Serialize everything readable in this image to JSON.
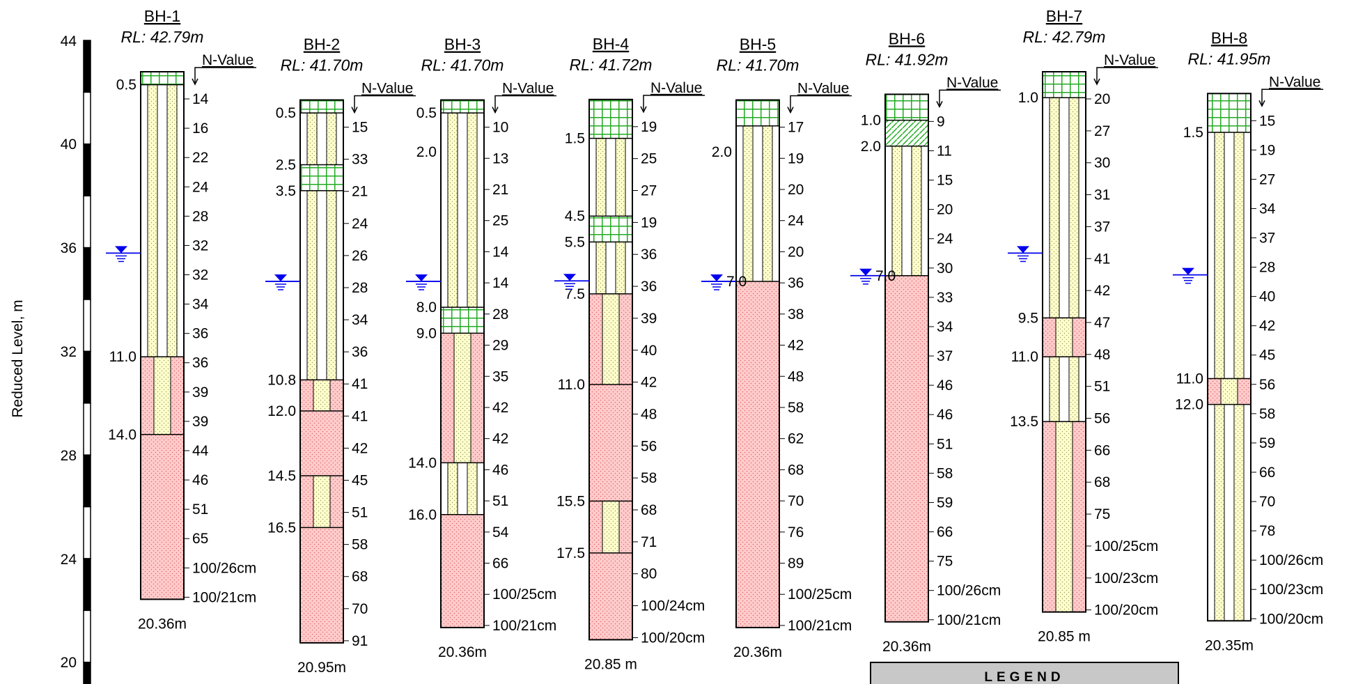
{
  "axis": {
    "label": "Reduced Level, m",
    "ticks": [
      "44",
      "40",
      "36",
      "32",
      "28",
      "24",
      "20"
    ]
  },
  "colors": {
    "fill": "#ffcccc",
    "sand": "#ffffcc",
    "topsoil": "#22aa22",
    "water": "#0000ee",
    "legend_bg": "#c8c8c8"
  },
  "boreholes": [
    {
      "id": "BH-1",
      "rl_label": "RL: 42.79m",
      "rl": 42.79,
      "nvalue_label": "N-Value",
      "total_depth_label": "20.36m",
      "total_depth": 20.36,
      "water_depth": 7.0,
      "layers": [
        {
          "type": "topsoil",
          "top": 0,
          "bottom": 0.5
        },
        {
          "type": "sand",
          "top": 0.5,
          "bottom": 11.0
        },
        {
          "type": "sandfill",
          "top": 11.0,
          "bottom": 14.0
        },
        {
          "type": "fill",
          "top": 14.0,
          "bottom": 20.36
        }
      ],
      "depth_labels": [
        {
          "depth": 0.5,
          "text": "0.5"
        },
        {
          "depth": 11.0,
          "text": "11.0"
        },
        {
          "depth": 14.0,
          "text": "14.0"
        }
      ],
      "n_values": [
        "14",
        "16",
        "22",
        "24",
        "28",
        "32",
        "32",
        "34",
        "36",
        "36",
        "39",
        "39",
        "44",
        "46",
        "51",
        "65",
        "100/26cm",
        "100/21cm"
      ]
    },
    {
      "id": "BH-2",
      "rl_label": "RL: 41.70m",
      "rl": 41.7,
      "nvalue_label": "N-Value",
      "total_depth_label": "20.95m",
      "total_depth": 20.95,
      "water_depth": 7.0,
      "layers": [
        {
          "type": "topsoil",
          "top": 0,
          "bottom": 0.5
        },
        {
          "type": "sand",
          "top": 0.5,
          "bottom": 2.5
        },
        {
          "type": "topsoil",
          "top": 2.5,
          "bottom": 3.5
        },
        {
          "type": "sand",
          "top": 3.5,
          "bottom": 10.8
        },
        {
          "type": "sandfill",
          "top": 10.8,
          "bottom": 12.0
        },
        {
          "type": "fill",
          "top": 12.0,
          "bottom": 14.5
        },
        {
          "type": "sandfill",
          "top": 14.5,
          "bottom": 16.5
        },
        {
          "type": "fill",
          "top": 16.5,
          "bottom": 20.95
        }
      ],
      "depth_labels": [
        {
          "depth": 0.5,
          "text": "0.5"
        },
        {
          "depth": 2.5,
          "text": "2.5"
        },
        {
          "depth": 3.5,
          "text": "3.5"
        },
        {
          "depth": 10.8,
          "text": "10.8"
        },
        {
          "depth": 12.0,
          "text": "12.0"
        },
        {
          "depth": 14.5,
          "text": "14.5"
        },
        {
          "depth": 16.5,
          "text": "16.5"
        }
      ],
      "n_values": [
        "15",
        "33",
        "21",
        "24",
        "26",
        "28",
        "34",
        "36",
        "41",
        "41",
        "42",
        "45",
        "51",
        "58",
        "68",
        "70",
        "91"
      ]
    },
    {
      "id": "BH-3",
      "rl_label": "RL: 41.70m",
      "rl": 41.7,
      "nvalue_label": "N-Value",
      "total_depth_label": "20.36m",
      "total_depth": 20.36,
      "water_depth": 7.0,
      "layers": [
        {
          "type": "topsoil",
          "top": 0,
          "bottom": 0.5
        },
        {
          "type": "sand",
          "top": 0.5,
          "bottom": 8.0
        },
        {
          "type": "topsoil",
          "top": 8.0,
          "bottom": 9.0
        },
        {
          "type": "sandfill",
          "top": 9.0,
          "bottom": 14.0
        },
        {
          "type": "sand",
          "top": 14.0,
          "bottom": 16.0
        },
        {
          "type": "fill",
          "top": 16.0,
          "bottom": 20.36
        }
      ],
      "depth_labels": [
        {
          "depth": 0.5,
          "text": "0.5"
        },
        {
          "depth": 2.0,
          "text": "2.0"
        },
        {
          "depth": 8.0,
          "text": "8.0"
        },
        {
          "depth": 9.0,
          "text": "9.0"
        },
        {
          "depth": 14.0,
          "text": "14.0"
        },
        {
          "depth": 16.0,
          "text": "16.0"
        }
      ],
      "n_values": [
        "10",
        "13",
        "21",
        "25",
        "14",
        "14",
        "28",
        "29",
        "35",
        "42",
        "42",
        "46",
        "51",
        "54",
        "66",
        "100/25cm",
        "100/21cm"
      ]
    },
    {
      "id": "BH-4",
      "rl_label": "RL: 41.72m",
      "rl": 41.72,
      "nvalue_label": "N-Value",
      "total_depth_label": "20.85 m",
      "total_depth": 20.85,
      "water_depth": 7.0,
      "layers": [
        {
          "type": "topsoil",
          "top": 0,
          "bottom": 1.5
        },
        {
          "type": "sand",
          "top": 1.5,
          "bottom": 4.5
        },
        {
          "type": "topsoil",
          "top": 4.5,
          "bottom": 5.5
        },
        {
          "type": "sand",
          "top": 5.5,
          "bottom": 7.5
        },
        {
          "type": "sandfill",
          "top": 7.5,
          "bottom": 11.0
        },
        {
          "type": "fill",
          "top": 11.0,
          "bottom": 15.5
        },
        {
          "type": "sandfill",
          "top": 15.5,
          "bottom": 17.5
        },
        {
          "type": "fill",
          "top": 17.5,
          "bottom": 20.85
        }
      ],
      "depth_labels": [
        {
          "depth": 1.5,
          "text": "1.5"
        },
        {
          "depth": 4.5,
          "text": "4.5"
        },
        {
          "depth": 5.5,
          "text": "5.5"
        },
        {
          "depth": 7.5,
          "text": "7.5"
        },
        {
          "depth": 11.0,
          "text": "11.0"
        },
        {
          "depth": 15.5,
          "text": "15.5"
        },
        {
          "depth": 17.5,
          "text": "17.5"
        }
      ],
      "n_values": [
        "19",
        "25",
        "27",
        "19",
        "36",
        "36",
        "39",
        "40",
        "42",
        "48",
        "56",
        "58",
        "68",
        "71",
        "80",
        "100/24cm",
        "100/20cm"
      ]
    },
    {
      "id": "BH-5",
      "rl_label": "RL: 41.70m",
      "rl": 41.7,
      "nvalue_label": "N-Value",
      "total_depth_label": "20.36m",
      "total_depth": 20.36,
      "water_depth": 7.0,
      "water_label": "7.0",
      "layers": [
        {
          "type": "topsoil",
          "top": 0,
          "bottom": 1.0
        },
        {
          "type": "sand",
          "top": 1.0,
          "bottom": 7.0
        },
        {
          "type": "fill",
          "top": 7.0,
          "bottom": 20.36
        }
      ],
      "depth_labels": [
        {
          "depth": 2.0,
          "text": "2.0"
        }
      ],
      "n_values": [
        "17",
        "19",
        "20",
        "24",
        "20",
        "36",
        "38",
        "42",
        "48",
        "58",
        "62",
        "68",
        "70",
        "76",
        "89",
        "100/25cm",
        "100/21cm"
      ]
    },
    {
      "id": "BH-6",
      "rl_label": "RL: 41.92m",
      "rl": 41.92,
      "nvalue_label": "N-Value",
      "total_depth_label": "20.36m",
      "total_depth": 20.36,
      "water_depth": 7.0,
      "water_label": "7.0",
      "layers": [
        {
          "type": "topsoil",
          "top": 0,
          "bottom": 1.0
        },
        {
          "type": "hatch",
          "top": 1.0,
          "bottom": 2.0
        },
        {
          "type": "sand",
          "top": 2.0,
          "bottom": 7.0
        },
        {
          "type": "fill",
          "top": 7.0,
          "bottom": 20.36
        }
      ],
      "depth_labels": [
        {
          "depth": 1.0,
          "text": "1.0"
        },
        {
          "depth": 2.0,
          "text": "2.0"
        }
      ],
      "n_values": [
        "9",
        "11",
        "15",
        "20",
        "24",
        "30",
        "33",
        "34",
        "37",
        "46",
        "46",
        "51",
        "58",
        "59",
        "66",
        "75",
        "100/26cm",
        "100/21cm"
      ]
    },
    {
      "id": "BH-7",
      "rl_label": "RL: 42.79m",
      "rl": 42.79,
      "nvalue_label": "N-Value",
      "total_depth_label": "20.85 m",
      "total_depth": 20.85,
      "water_depth": 7.0,
      "layers": [
        {
          "type": "topsoil",
          "top": 0,
          "bottom": 1.0
        },
        {
          "type": "sand",
          "top": 1.0,
          "bottom": 9.5
        },
        {
          "type": "sandfill",
          "top": 9.5,
          "bottom": 11.0
        },
        {
          "type": "sand",
          "top": 11.0,
          "bottom": 13.5
        },
        {
          "type": "sandfill",
          "top": 13.5,
          "bottom": 20.85
        }
      ],
      "depth_labels": [
        {
          "depth": 1.0,
          "text": "1.0"
        },
        {
          "depth": 9.5,
          "text": "9.5"
        },
        {
          "depth": 11.0,
          "text": "11.0"
        },
        {
          "depth": 13.5,
          "text": "13.5"
        }
      ],
      "n_values": [
        "20",
        "27",
        "30",
        "31",
        "37",
        "41",
        "42",
        "47",
        "48",
        "51",
        "56",
        "66",
        "68",
        "75",
        "100/25cm",
        "100/23cm",
        "100/20cm"
      ]
    },
    {
      "id": "BH-8",
      "rl_label": "RL: 41.95m",
      "rl": 41.95,
      "nvalue_label": "N-Value",
      "total_depth_label": "20.35m",
      "total_depth": 20.35,
      "water_depth": 7.0,
      "layers": [
        {
          "type": "topsoil",
          "top": 0,
          "bottom": 1.5
        },
        {
          "type": "sand",
          "top": 1.5,
          "bottom": 11.0
        },
        {
          "type": "sandfill",
          "top": 11.0,
          "bottom": 12.0
        },
        {
          "type": "sand",
          "top": 12.0,
          "bottom": 20.35
        }
      ],
      "depth_labels": [
        {
          "depth": 1.5,
          "text": "1.5"
        },
        {
          "depth": 11.0,
          "text": "11.0"
        },
        {
          "depth": 12.0,
          "text": "12.0"
        }
      ],
      "n_values": [
        "15",
        "19",
        "27",
        "34",
        "37",
        "28",
        "40",
        "42",
        "45",
        "56",
        "58",
        "59",
        "66",
        "70",
        "78",
        "100/26cm",
        "100/23cm",
        "100/20cm"
      ]
    }
  ],
  "legend": {
    "title": "LEGEND"
  }
}
